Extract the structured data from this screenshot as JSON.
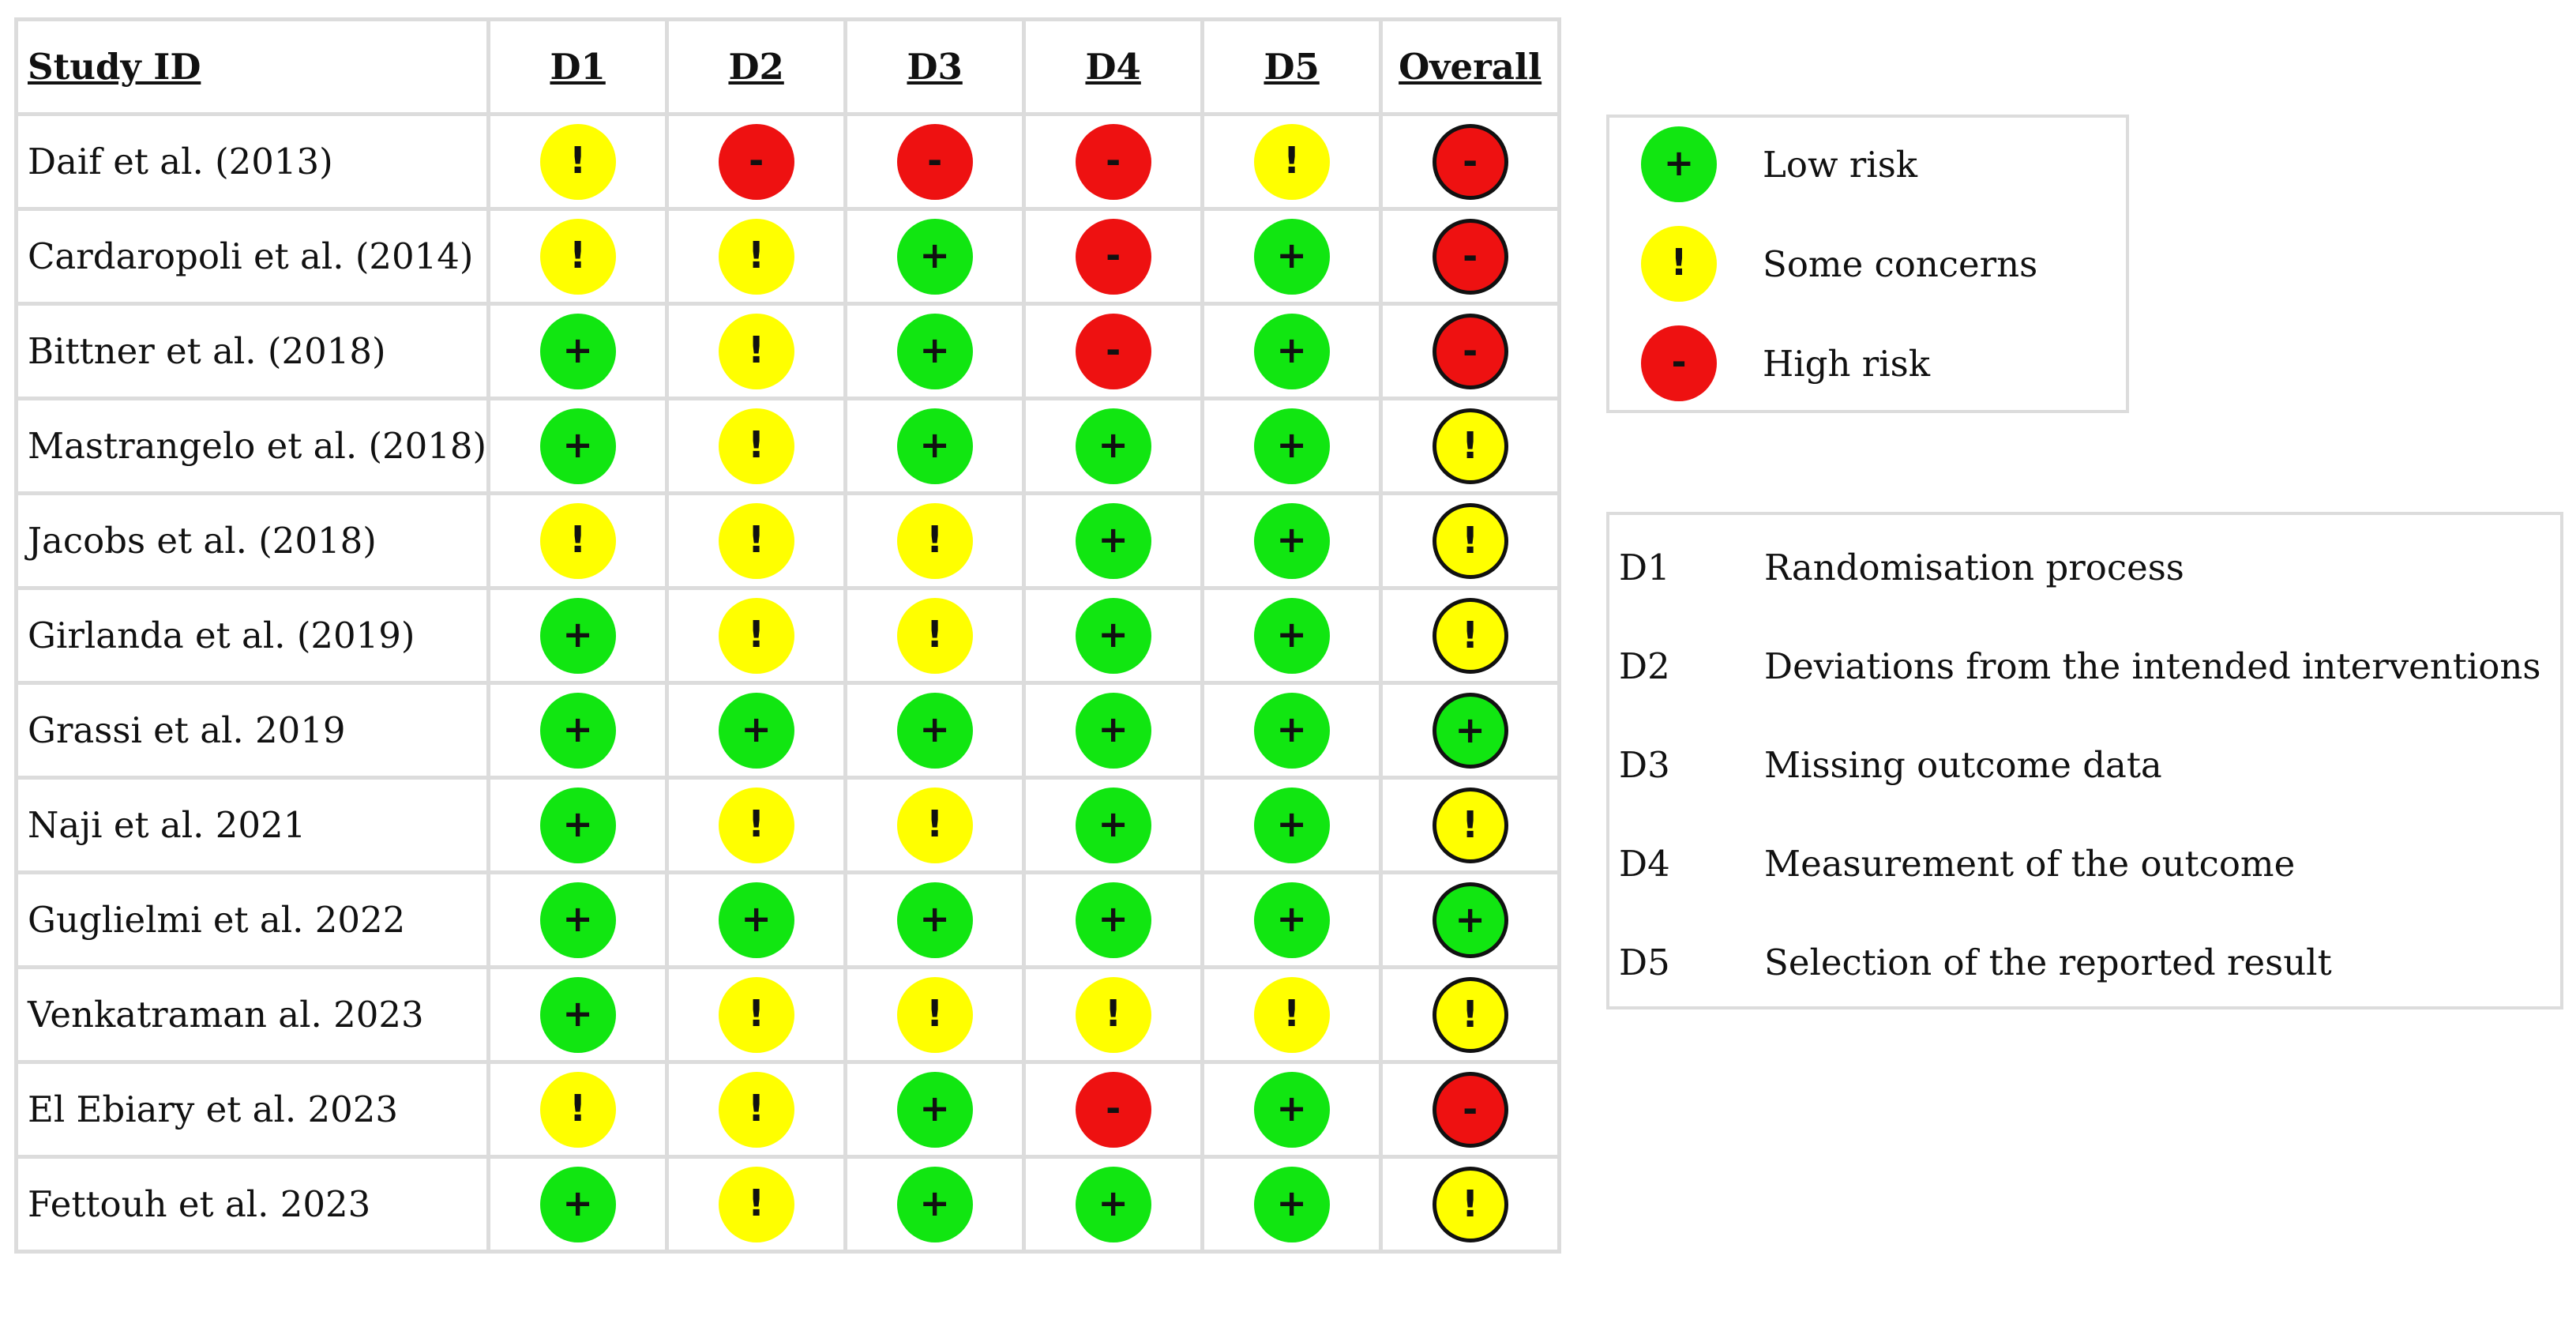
{
  "colors": {
    "low": "#11e611",
    "some": "#ffff00",
    "high": "#ee1111",
    "grid": "#dcdcdc"
  },
  "table": {
    "headers": [
      "Study ID",
      "D1",
      "D2",
      "D3",
      "D4",
      "D5",
      "Overall"
    ],
    "rows": [
      {
        "study": "Daif et al. (2013)",
        "d": [
          "some",
          "high",
          "high",
          "high",
          "some"
        ],
        "overall": "high"
      },
      {
        "study": "Cardaropoli et al. (2014)",
        "d": [
          "some",
          "some",
          "low",
          "high",
          "low"
        ],
        "overall": "high"
      },
      {
        "study": "Bittner et al. (2018)",
        "d": [
          "low",
          "some",
          "low",
          "high",
          "low"
        ],
        "overall": "high"
      },
      {
        "study": "Mastrangelo et al. (2018)",
        "d": [
          "low",
          "some",
          "low",
          "low",
          "low"
        ],
        "overall": "some"
      },
      {
        "study": "Jacobs et al. (2018)",
        "d": [
          "some",
          "some",
          "some",
          "low",
          "low"
        ],
        "overall": "some"
      },
      {
        "study": "Girlanda et al. (2019)",
        "d": [
          "low",
          "some",
          "some",
          "low",
          "low"
        ],
        "overall": "some"
      },
      {
        "study": "Grassi et al. 2019",
        "d": [
          "low",
          "low",
          "low",
          "low",
          "low"
        ],
        "overall": "low"
      },
      {
        "study": "Naji et al. 2021",
        "d": [
          "low",
          "some",
          "some",
          "low",
          "low"
        ],
        "overall": "some"
      },
      {
        "study": "Guglielmi et al. 2022",
        "d": [
          "low",
          "low",
          "low",
          "low",
          "low"
        ],
        "overall": "low"
      },
      {
        "study": "Venkatraman al. 2023",
        "d": [
          "low",
          "some",
          "some",
          "some",
          "some"
        ],
        "overall": "some"
      },
      {
        "study": "El Ebiary et al. 2023",
        "d": [
          "some",
          "some",
          "low",
          "high",
          "low"
        ],
        "overall": "high"
      },
      {
        "study": "Fettouh et al. 2023",
        "d": [
          "low",
          "some",
          "low",
          "low",
          "low"
        ],
        "overall": "some"
      }
    ]
  },
  "symbols": {
    "low": "+",
    "some": "!",
    "high": "-"
  },
  "judgement_legend": [
    {
      "level": "low",
      "label": "Low risk"
    },
    {
      "level": "some",
      "label": "Some concerns"
    },
    {
      "level": "high",
      "label": "High risk"
    }
  ],
  "domain_legend": [
    {
      "code": "D1",
      "label": "Randomisation process"
    },
    {
      "code": "D2",
      "label": "Deviations from the intended interventions"
    },
    {
      "code": "D3",
      "label": "Missing outcome data"
    },
    {
      "code": "D4",
      "label": "Measurement of the outcome"
    },
    {
      "code": "D5",
      "label": "Selection of the reported result"
    }
  ]
}
